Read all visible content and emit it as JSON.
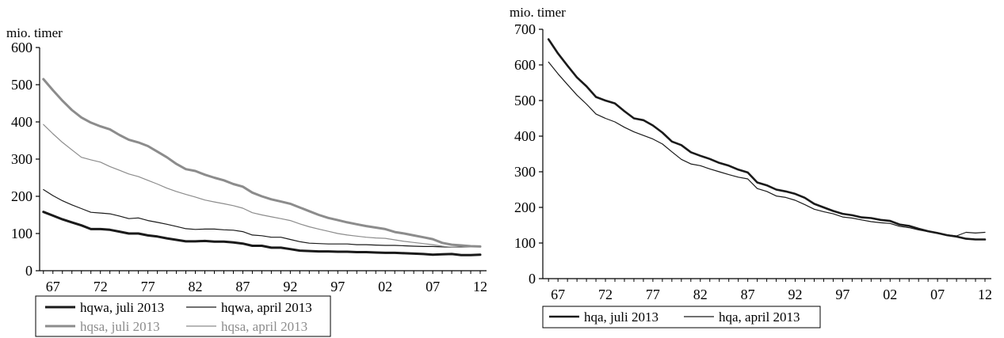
{
  "chart_data": [
    {
      "type": "line",
      "title": "",
      "unit_label": "mio. timer",
      "xlabel": "",
      "ylabel": "",
      "x": [
        1966,
        1967,
        1968,
        1969,
        1970,
        1971,
        1972,
        1973,
        1974,
        1975,
        1976,
        1977,
        1978,
        1979,
        1980,
        1981,
        1982,
        1983,
        1984,
        1985,
        1986,
        1987,
        1988,
        1989,
        1990,
        1991,
        1992,
        1993,
        1994,
        1995,
        1996,
        1997,
        1998,
        1999,
        2000,
        2001,
        2002,
        2003,
        2004,
        2005,
        2006,
        2007,
        2008,
        2009,
        2010,
        2011,
        2012
      ],
      "xlim": [
        1965.6,
        2012.5
      ],
      "x_ticks": [
        1967,
        1972,
        1977,
        1982,
        1987,
        1992,
        1997,
        2002,
        2007,
        2012
      ],
      "x_tick_labels": [
        "67",
        "72",
        "77",
        "82",
        "87",
        "92",
        "97",
        "02",
        "07",
        "12"
      ],
      "ylim": [
        0,
        600
      ],
      "y_ticks": [
        0,
        100,
        200,
        300,
        400,
        500,
        600
      ],
      "y_tick_labels": [
        "0",
        "100",
        "200",
        "300",
        "400",
        "500",
        "600"
      ],
      "grid": false,
      "legend_position": "bottom",
      "series": [
        {
          "name": "hqwa, juli 2013",
          "color": "#1a1a1a",
          "width": 3,
          "values": [
            158,
            148,
            138,
            130,
            122,
            112,
            112,
            110,
            105,
            100,
            100,
            95,
            92,
            87,
            83,
            79,
            79,
            80,
            78,
            78,
            76,
            73,
            67,
            67,
            62,
            62,
            58,
            54,
            53,
            52,
            52,
            51,
            51,
            50,
            50,
            49,
            48,
            48,
            47,
            46,
            45,
            43,
            44,
            45,
            42,
            42,
            43
          ]
        },
        {
          "name": "hqwa, april 2013",
          "color": "#1a1a1a",
          "width": 1.2,
          "values": [
            218,
            202,
            188,
            177,
            167,
            157,
            155,
            153,
            147,
            140,
            142,
            135,
            130,
            125,
            119,
            113,
            111,
            112,
            112,
            110,
            109,
            105,
            96,
            94,
            90,
            90,
            84,
            78,
            74,
            73,
            72,
            72,
            72,
            70,
            70,
            69,
            68,
            68,
            67,
            66,
            65,
            65,
            64,
            63,
            64,
            65,
            66
          ]
        },
        {
          "name": "hqsa, juli 2013",
          "color": "#8c8c8c",
          "width": 3,
          "values": [
            515,
            485,
            457,
            432,
            412,
            398,
            388,
            380,
            365,
            352,
            345,
            335,
            320,
            305,
            287,
            273,
            268,
            258,
            250,
            243,
            233,
            226,
            210,
            200,
            192,
            186,
            180,
            170,
            160,
            150,
            142,
            136,
            130,
            125,
            120,
            116,
            112,
            104,
            100,
            95,
            90,
            85,
            75,
            70,
            68,
            66,
            65
          ]
        },
        {
          "name": "hqsa, april 2013",
          "color": "#8c8c8c",
          "width": 1.2,
          "values": [
            393,
            368,
            345,
            325,
            305,
            298,
            292,
            280,
            270,
            260,
            253,
            243,
            233,
            222,
            213,
            205,
            198,
            190,
            185,
            180,
            175,
            168,
            156,
            150,
            145,
            140,
            135,
            126,
            118,
            112,
            106,
            100,
            96,
            93,
            90,
            88,
            87,
            83,
            79,
            76,
            73,
            70,
            66,
            63,
            63,
            64,
            65
          ]
        }
      ]
    },
    {
      "type": "line",
      "title": "",
      "unit_label": "mio. timer",
      "xlabel": "",
      "ylabel": "",
      "x": [
        1966,
        1967,
        1968,
        1969,
        1970,
        1971,
        1972,
        1973,
        1974,
        1975,
        1976,
        1977,
        1978,
        1979,
        1980,
        1981,
        1982,
        1983,
        1984,
        1985,
        1986,
        1987,
        1988,
        1989,
        1990,
        1991,
        1992,
        1993,
        1994,
        1995,
        1996,
        1997,
        1998,
        1999,
        2000,
        2001,
        2002,
        2003,
        2004,
        2005,
        2006,
        2007,
        2008,
        2009,
        2010,
        2011,
        2012
      ],
      "xlim": [
        1965.4,
        2012.5
      ],
      "x_ticks": [
        1967,
        1972,
        1977,
        1982,
        1987,
        1992,
        1997,
        2002,
        2007,
        2012
      ],
      "x_tick_labels": [
        "67",
        "72",
        "77",
        "82",
        "87",
        "92",
        "97",
        "02",
        "07",
        "12"
      ],
      "ylim": [
        0,
        700
      ],
      "y_ticks": [
        0,
        100,
        200,
        300,
        400,
        500,
        600,
        700
      ],
      "y_tick_labels": [
        "0",
        "100",
        "200",
        "300",
        "400",
        "500",
        "600",
        "700"
      ],
      "grid": false,
      "legend_position": "bottom",
      "series": [
        {
          "name": "hqa, juli 2013",
          "color": "#1a1a1a",
          "width": 2.6,
          "values": [
            672,
            632,
            598,
            565,
            540,
            510,
            500,
            492,
            470,
            450,
            445,
            430,
            410,
            385,
            375,
            355,
            345,
            336,
            325,
            317,
            306,
            298,
            270,
            262,
            250,
            245,
            238,
            227,
            210,
            200,
            190,
            182,
            178,
            172,
            170,
            165,
            162,
            152,
            148,
            140,
            133,
            128,
            122,
            118,
            112,
            110,
            110
          ]
        },
        {
          "name": "hqa, april 2013",
          "color": "#1a1a1a",
          "width": 1.2,
          "values": [
            608,
            575,
            545,
            515,
            490,
            462,
            450,
            440,
            425,
            412,
            402,
            392,
            378,
            356,
            335,
            322,
            317,
            308,
            300,
            292,
            285,
            280,
            253,
            245,
            232,
            228,
            220,
            208,
            195,
            188,
            182,
            173,
            170,
            165,
            160,
            157,
            155,
            147,
            143,
            137,
            132,
            127,
            123,
            120,
            130,
            128,
            130
          ]
        }
      ]
    }
  ]
}
